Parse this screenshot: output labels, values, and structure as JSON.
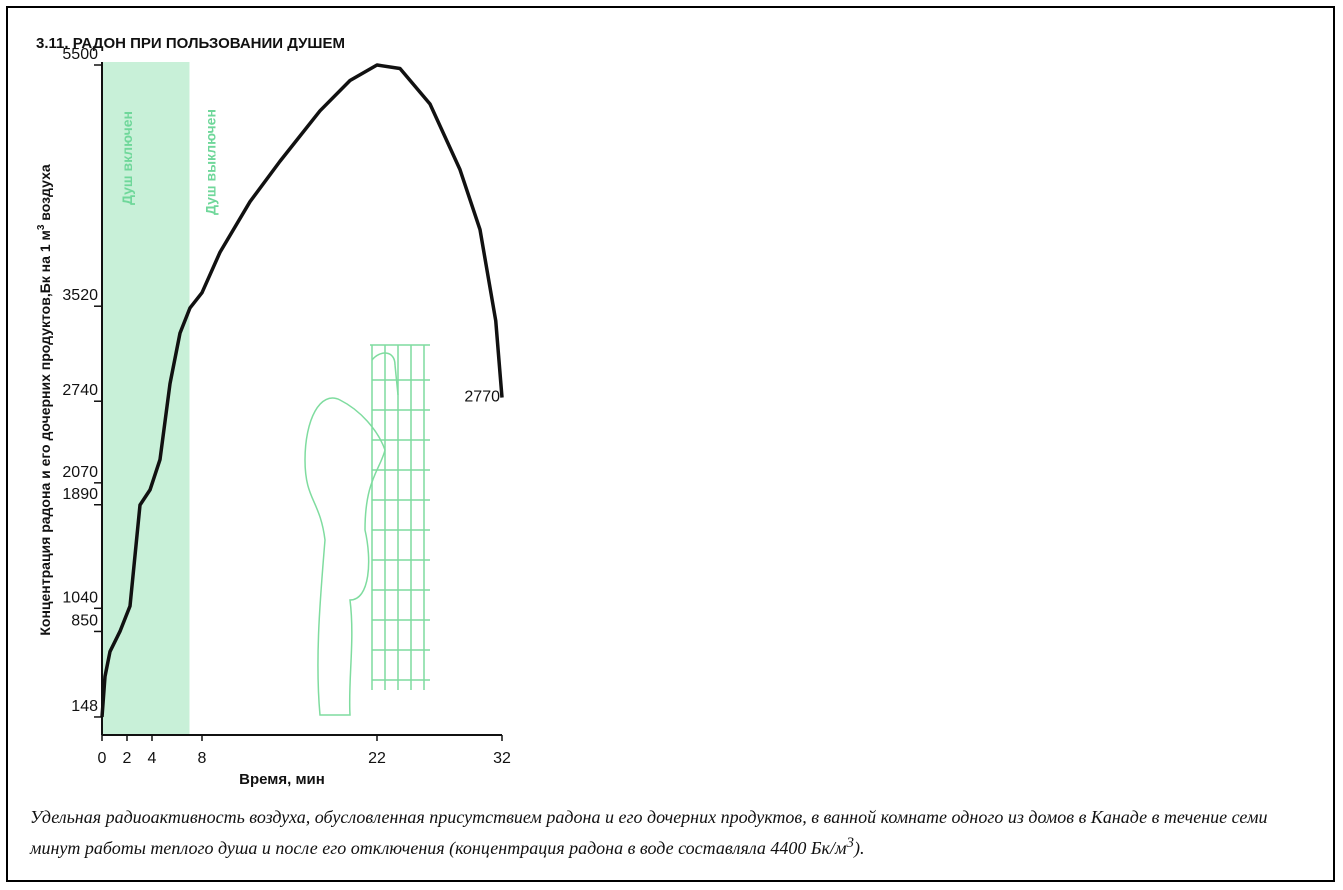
{
  "chart_data": {
    "type": "line",
    "title": "3.11. РАДОН ПРИ ПОЛЬЗОВАНИИ ДУШЕМ",
    "xlabel": "Время, мин",
    "ylabel_parts": [
      "Концентрация радона и его дочерних продуктов,Бк на 1 м",
      "3",
      " воздуха"
    ],
    "annotations": [
      "Душ включен",
      "Душ выключен"
    ],
    "shaded_xlim": [
      0,
      7
    ],
    "shade_color": "#c8f0d8",
    "x": [
      0,
      0.24,
      0.64,
      1.44,
      2.24,
      2.8,
      3.04,
      3.84,
      4.64,
      5.44,
      6.24,
      7.04,
      8,
      9.44,
      11.84,
      14.24,
      17.44,
      19.84,
      22,
      23.84,
      26.24,
      28.64,
      30.24,
      31.5,
      32
    ],
    "series": [
      {
        "color": "#111111",
        "values": [
          148,
          480,
          685,
          851,
          1058,
          1639,
          1888,
          2012,
          2261,
          2884,
          3299,
          3506,
          3631,
          3963,
          4378,
          4710,
          5124,
          5373,
          5500,
          5471,
          5180,
          4641,
          4149,
          3400,
          2770
        ]
      }
    ],
    "xlim": [
      0,
      32
    ],
    "xticks": [
      0,
      2,
      4,
      8,
      22,
      32
    ],
    "ylim": [
      0,
      5500
    ],
    "yticks": [
      148,
      850,
      1040,
      1890,
      2070,
      2740,
      3520,
      5500
    ]
  },
  "caption_parts": [
    "Удельная радиоактивность воздуха, обусловленная присутствием радона и его дочерних продуктов, в ванной комнате одного из домов в Канаде в течение семи минут работы теплого душа и после его отключения (концентрация радона в воде составляла 4400 Бк/м",
    "3",
    ")."
  ]
}
